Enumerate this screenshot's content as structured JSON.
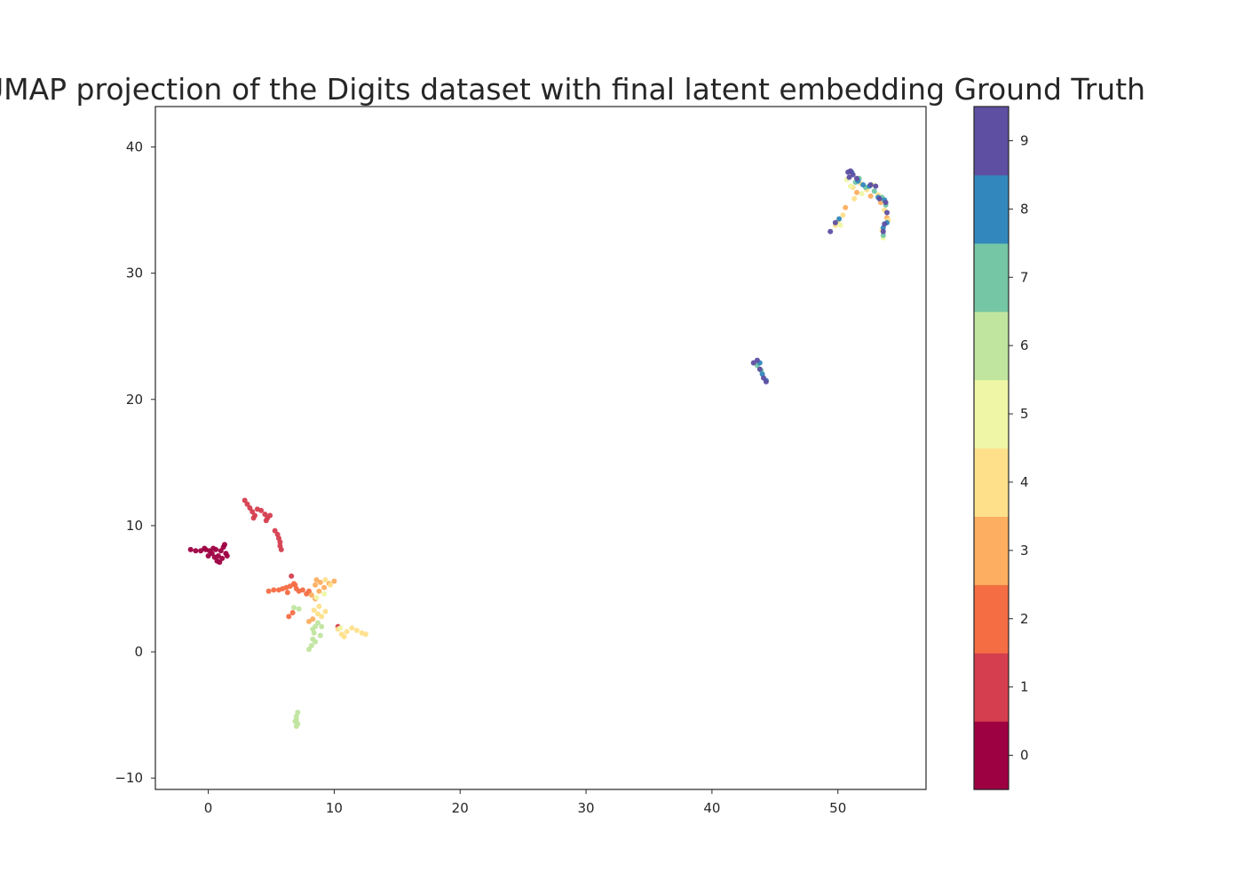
{
  "chart_data": {
    "type": "scatter",
    "title": "UMAP projection of the Digits dataset with final latent embedding Ground Truth",
    "xlabel": "",
    "ylabel": "",
    "xlim": [
      -4.2,
      57
    ],
    "ylim": [
      -10.9,
      43.2
    ],
    "xticks": [
      0,
      10,
      20,
      30,
      40,
      50
    ],
    "yticks": [
      -10,
      0,
      10,
      20,
      30,
      40
    ],
    "xtick_labels": [
      "0",
      "10",
      "20",
      "30",
      "40",
      "50"
    ],
    "ytick_labels": [
      "−10",
      "0",
      "10",
      "20",
      "30",
      "40"
    ],
    "grid": false,
    "colorbar": {
      "labels": [
        "0",
        "1",
        "2",
        "3",
        "4",
        "5",
        "6",
        "7",
        "8",
        "9"
      ],
      "colors": [
        "#9e0142",
        "#d53e4f",
        "#f46d43",
        "#fdae61",
        "#fee08b",
        "#eff7a6",
        "#c0e59f",
        "#74c6a5",
        "#3288bd",
        "#5e4fa2"
      ]
    },
    "series": [
      {
        "class": 0,
        "points": [
          [
            -1.4,
            8.1
          ],
          [
            -1.0,
            8.0
          ],
          [
            -0.6,
            8.0
          ],
          [
            -0.2,
            8.1
          ],
          [
            0.1,
            8.0
          ],
          [
            0.3,
            7.8
          ],
          [
            0.5,
            7.5
          ],
          [
            0.7,
            7.2
          ],
          [
            0.9,
            7.1
          ],
          [
            0.8,
            7.6
          ],
          [
            1.0,
            8.0
          ],
          [
            1.2,
            8.3
          ],
          [
            1.3,
            8.5
          ],
          [
            1.4,
            7.8
          ],
          [
            1.5,
            7.6
          ],
          [
            0.4,
            8.2
          ],
          [
            0.0,
            7.6
          ],
          [
            -0.3,
            8.2
          ],
          [
            0.6,
            8.1
          ],
          [
            1.1,
            7.4
          ]
        ]
      },
      {
        "class": 1,
        "points": [
          [
            2.9,
            12.0
          ],
          [
            3.1,
            11.7
          ],
          [
            3.3,
            11.4
          ],
          [
            3.5,
            11.1
          ],
          [
            3.7,
            10.8
          ],
          [
            3.9,
            11.3
          ],
          [
            4.2,
            11.2
          ],
          [
            4.5,
            10.9
          ],
          [
            4.7,
            10.6
          ],
          [
            4.9,
            10.8
          ],
          [
            5.3,
            9.6
          ],
          [
            5.5,
            9.3
          ],
          [
            5.6,
            9.0
          ],
          [
            5.7,
            8.7
          ],
          [
            5.7,
            8.4
          ],
          [
            5.8,
            8.1
          ],
          [
            3.6,
            10.6
          ],
          [
            4.6,
            10.4
          ],
          [
            6.6,
            6.0
          ],
          [
            10.3,
            2.0
          ]
        ]
      },
      {
        "class": 2,
        "points": [
          [
            4.8,
            4.8
          ],
          [
            5.2,
            4.9
          ],
          [
            5.6,
            4.9
          ],
          [
            5.9,
            5.0
          ],
          [
            6.2,
            5.1
          ],
          [
            6.5,
            5.2
          ],
          [
            6.8,
            5.4
          ],
          [
            7.0,
            5.0
          ],
          [
            7.2,
            4.8
          ],
          [
            7.5,
            4.9
          ],
          [
            7.8,
            4.6
          ],
          [
            8.0,
            4.8
          ],
          [
            6.4,
            2.8
          ],
          [
            6.7,
            3.1
          ],
          [
            6.9,
            5.3
          ],
          [
            6.3,
            4.7
          ]
        ]
      },
      {
        "class": 3,
        "points": [
          [
            8.6,
            5.7
          ],
          [
            8.9,
            5.5
          ],
          [
            8.5,
            5.3
          ],
          [
            9.2,
            5.1
          ],
          [
            9.6,
            5.4
          ],
          [
            10.0,
            5.6
          ],
          [
            8.2,
            4.5
          ],
          [
            8.5,
            4.2
          ],
          [
            8.0,
            2.4
          ],
          [
            8.3,
            2.6
          ],
          [
            52.6,
            36.1
          ],
          [
            53.4,
            35.6
          ],
          [
            53.9,
            34.4
          ],
          [
            50.6,
            35.2
          ],
          [
            51.5,
            36.4
          ],
          [
            8.8,
            4.8
          ]
        ]
      },
      {
        "class": 4,
        "points": [
          [
            8.4,
            3.3
          ],
          [
            8.7,
            3.0
          ],
          [
            9.0,
            2.8
          ],
          [
            8.8,
            3.6
          ],
          [
            9.3,
            3.2
          ],
          [
            10.3,
            1.8
          ],
          [
            10.6,
            1.4
          ],
          [
            11.0,
            1.6
          ],
          [
            11.4,
            1.9
          ],
          [
            11.8,
            1.7
          ],
          [
            12.2,
            1.5
          ],
          [
            12.5,
            1.4
          ],
          [
            10.8,
            1.2
          ],
          [
            9.3,
            5.7
          ],
          [
            9.7,
            5.3
          ],
          [
            51.2,
            36.8
          ],
          [
            51.8,
            37.1
          ],
          [
            52.3,
            36.6
          ],
          [
            53.2,
            36.2
          ],
          [
            50.4,
            34.6
          ],
          [
            50.0,
            34.1
          ],
          [
            49.8,
            33.8
          ],
          [
            53.7,
            35.0
          ],
          [
            54.0,
            34.2
          ],
          [
            51.3,
            35.9
          ],
          [
            53.5,
            33.4
          ]
        ]
      },
      {
        "class": 5,
        "points": [
          [
            50.7,
            37.4
          ],
          [
            51.0,
            36.9
          ],
          [
            51.9,
            36.3
          ],
          [
            52.8,
            37.0
          ],
          [
            53.6,
            32.8
          ],
          [
            50.2,
            33.8
          ],
          [
            8.6,
            4.3
          ],
          [
            9.2,
            4.6
          ],
          [
            10.5,
            1.9
          ]
        ]
      },
      {
        "class": 6,
        "points": [
          [
            8.0,
            0.2
          ],
          [
            8.2,
            0.5
          ],
          [
            8.3,
            1.0
          ],
          [
            8.4,
            1.5
          ],
          [
            8.5,
            2.0
          ],
          [
            8.7,
            2.3
          ],
          [
            9.0,
            2.0
          ],
          [
            8.5,
            0.8
          ],
          [
            8.9,
            1.3
          ],
          [
            7.1,
            -4.8
          ],
          [
            7.0,
            -5.1
          ],
          [
            7.0,
            -5.4
          ],
          [
            7.1,
            -5.7
          ],
          [
            7.0,
            -5.9
          ],
          [
            6.9,
            -5.5
          ],
          [
            8.3,
            1.8
          ],
          [
            6.8,
            3.5
          ],
          [
            7.2,
            3.4
          ]
        ]
      },
      {
        "class": 7,
        "points": [
          [
            43.6,
            22.7
          ],
          [
            43.9,
            22.3
          ],
          [
            51.7,
            37.5
          ],
          [
            52.2,
            36.8
          ],
          [
            53.5,
            36.0
          ],
          [
            53.8,
            35.4
          ],
          [
            53.6,
            33.0
          ],
          [
            51.4,
            37.2
          ],
          [
            52.9,
            36.5
          ]
        ]
      },
      {
        "class": 8,
        "points": [
          [
            43.8,
            22.9
          ],
          [
            44.0,
            22.0
          ],
          [
            44.3,
            21.5
          ],
          [
            51.1,
            38.0
          ],
          [
            51.6,
            37.3
          ],
          [
            52.0,
            37.0
          ],
          [
            53.2,
            36.0
          ],
          [
            53.7,
            35.8
          ],
          [
            53.9,
            34.0
          ],
          [
            53.6,
            33.6
          ],
          [
            50.1,
            34.3
          ],
          [
            52.5,
            36.9
          ]
        ]
      },
      {
        "class": 9,
        "points": [
          [
            43.3,
            22.9
          ],
          [
            43.6,
            23.1
          ],
          [
            43.8,
            22.4
          ],
          [
            44.1,
            21.7
          ],
          [
            44.3,
            21.4
          ],
          [
            50.8,
            38.0
          ],
          [
            51.0,
            38.1
          ],
          [
            51.2,
            37.8
          ],
          [
            51.5,
            37.5
          ],
          [
            52.6,
            37.0
          ],
          [
            53.0,
            36.9
          ],
          [
            53.3,
            35.9
          ],
          [
            53.8,
            35.6
          ],
          [
            53.9,
            34.8
          ],
          [
            53.7,
            33.9
          ],
          [
            53.6,
            33.3
          ],
          [
            49.4,
            33.3
          ],
          [
            49.8,
            34.0
          ],
          [
            50.9,
            37.6
          ]
        ]
      }
    ]
  }
}
